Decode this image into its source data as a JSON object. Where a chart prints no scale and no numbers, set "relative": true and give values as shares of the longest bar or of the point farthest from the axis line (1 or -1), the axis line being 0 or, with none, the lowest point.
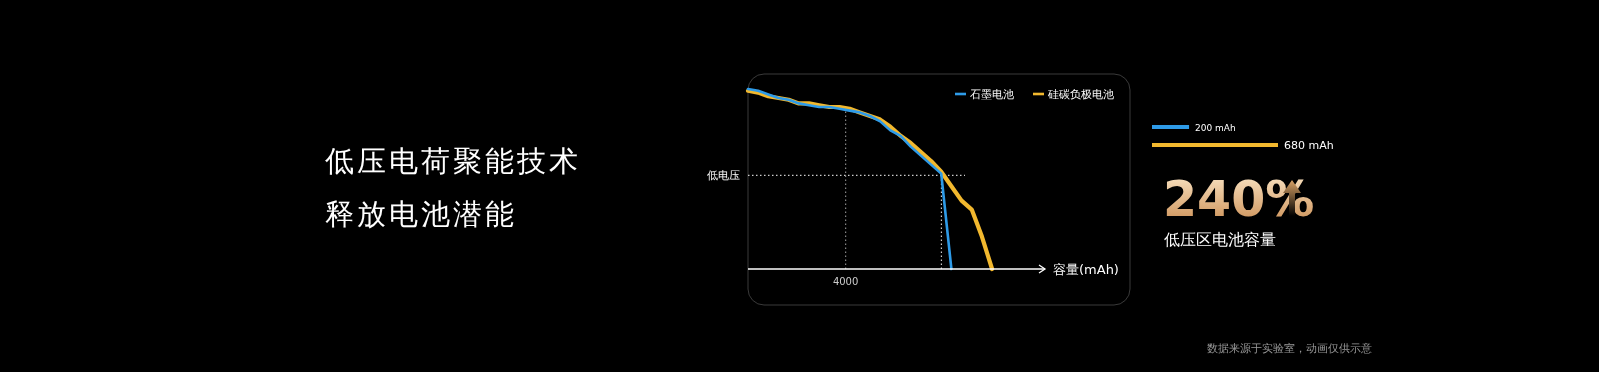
{
  "chart_data": [
    {
      "type": "other",
      "title": "低压电荷聚能技术",
      "subtitle": "释放电池潜能"
    },
    {
      "type": "line",
      "xlabel": "容量(mAh)",
      "relative": true,
      "legend": "top right",
      "marker": "none",
      "line_style": "solid",
      "categories": [
        null,
        null,
        null,
        null,
        null,
        null,
        null,
        null,
        null,
        null,
        null,
        null,
        null,
        null,
        null,
        null,
        null,
        null,
        null,
        null,
        null,
        null,
        null,
        null,
        null
      ],
      "ref_lines": [
        {
          "axis": "y",
          "value": 0.52,
          "label": "低电压",
          "line_style": "dotted",
          "color": "#cccccc"
        }
      ],
      "annotations": [
        "4000",
        "数据来源于实验室，动画仅供示意"
      ],
      "series": [
        {
          "name": "石墨电池",
          "color": "#2e9be8",
          "values": [
            1.0,
            0.99,
            0.97,
            0.95,
            0.94,
            0.92,
            0.91,
            0.9,
            0.9,
            0.89,
            0.88,
            0.87,
            0.85,
            0.82,
            0.77,
            0.74,
            0.68,
            0.63,
            0.58,
            0.53,
            0,
            null,
            null,
            null,
            null
          ]
        },
        {
          "name": "硅碳负极电池",
          "color": "#f2b82e",
          "values": [
            0.99,
            0.98,
            0.96,
            0.95,
            0.94,
            0.92,
            0.92,
            0.91,
            0.9,
            0.9,
            0.89,
            0.87,
            0.85,
            0.83,
            0.79,
            0.74,
            0.7,
            0.65,
            0.6,
            0.54,
            0.46,
            0.38,
            0.33,
            0.18,
            0
          ]
        }
      ]
    },
    {
      "type": "bar",
      "orientation": "horizontal",
      "categories": [
        null,
        null
      ],
      "values": [
        200,
        680
      ],
      "colors": [
        "#2e9be8",
        "#f2b82e"
      ],
      "value_labels": [
        "200 mAh",
        "680 mAh"
      ],
      "annotations": [
        "240%",
        "低压区电池容量"
      ]
    }
  ]
}
